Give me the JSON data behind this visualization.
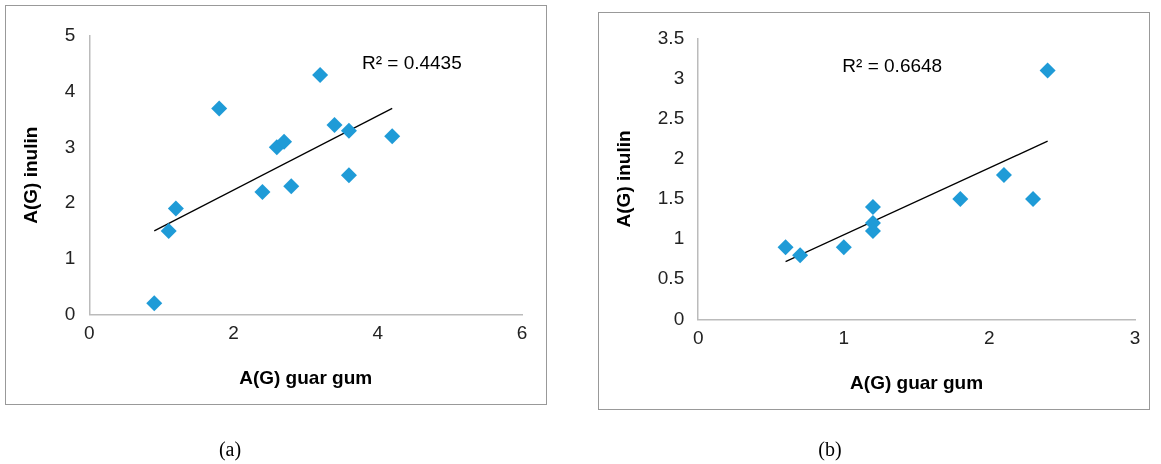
{
  "chart_data": [
    {
      "type": "scatter",
      "xlabel": "A(G) guar gum",
      "ylabel": "A(G) inulin",
      "xlim": [
        0,
        6
      ],
      "xticks": [
        0,
        2,
        4,
        6
      ],
      "ylim": [
        0,
        5
      ],
      "yticks": [
        0,
        1,
        2,
        3,
        4,
        5
      ],
      "grid": false,
      "legend": false,
      "marker": "diamond",
      "annotations": [
        "R² = 0.4435",
        "(a)"
      ],
      "series": [
        {
          "color": "#1f9bd7",
          "x": [
            0.9,
            1.1,
            1.2,
            1.8,
            2.4,
            2.6,
            2.7,
            2.8,
            3.2,
            3.4,
            3.6,
            3.6,
            4.2
          ],
          "values": [
            0.2,
            1.5,
            1.9,
            3.7,
            2.2,
            3.0,
            3.1,
            2.3,
            4.3,
            3.4,
            3.3,
            2.5,
            3.2
          ]
        },
        {
          "type": "line",
          "color": "#000000",
          "marker": "none",
          "x": [
            0.9,
            4.2
          ],
          "values": [
            1.5,
            3.7
          ]
        }
      ]
    },
    {
      "type": "scatter",
      "xlabel": "A(G) guar gum",
      "ylabel": "A(G) inulin",
      "xlim": [
        0,
        3
      ],
      "xticks": [
        0,
        1,
        2,
        3
      ],
      "ylim": [
        0,
        3.5
      ],
      "yticks": [
        0,
        0.5,
        1,
        1.5,
        2,
        2.5,
        3,
        3.5
      ],
      "grid": false,
      "legend": false,
      "marker": "diamond",
      "annotations": [
        "R² = 0.6648",
        "(b)"
      ],
      "series": [
        {
          "color": "#1f9bd7",
          "x": [
            0.6,
            0.7,
            1.0,
            1.2,
            1.2,
            1.2,
            1.8,
            2.1,
            2.3,
            2.4
          ],
          "values": [
            0.9,
            0.8,
            0.9,
            1.4,
            1.2,
            1.1,
            1.5,
            1.8,
            1.5,
            3.1
          ]
        },
        {
          "type": "line",
          "color": "#000000",
          "marker": "none",
          "x": [
            0.6,
            2.4
          ],
          "values": [
            0.72,
            2.22
          ]
        }
      ]
    }
  ]
}
